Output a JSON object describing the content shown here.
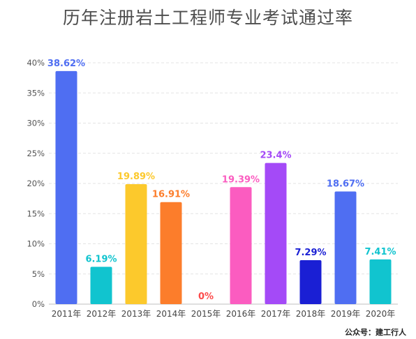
{
  "chart_data": {
    "type": "bar",
    "title": "历年注册岩土工程师专业考试通过率",
    "categories": [
      "2011年",
      "2012年",
      "2013年",
      "2014年",
      "2015年",
      "2016年",
      "2017年",
      "2018年",
      "2019年",
      "2020年"
    ],
    "values": [
      38.62,
      6.19,
      19.89,
      16.91,
      0,
      19.39,
      23.4,
      7.29,
      18.67,
      7.41
    ],
    "data_labels": [
      "38.62%",
      "6.19%",
      "19.89%",
      "16.91%",
      "0%",
      "19.39%",
      "23.4%",
      "7.29%",
      "18.67%",
      "7.41%"
    ],
    "colors": [
      "#4f6ef2",
      "#11c4cf",
      "#fcc92c",
      "#fc7d2b",
      "#fc4a4a",
      "#fb5cc0",
      "#a44af7",
      "#1a1fd4",
      "#4f6ef2",
      "#11c4cf"
    ],
    "ylim": [
      0,
      40
    ],
    "yticks": [
      "0%",
      "5%",
      "10%",
      "15%",
      "20%",
      "25%",
      "30%",
      "35%",
      "40%"
    ],
    "grid": true,
    "xlabel": "",
    "ylabel": ""
  },
  "footer": {
    "text": "公众号：建工行人"
  }
}
